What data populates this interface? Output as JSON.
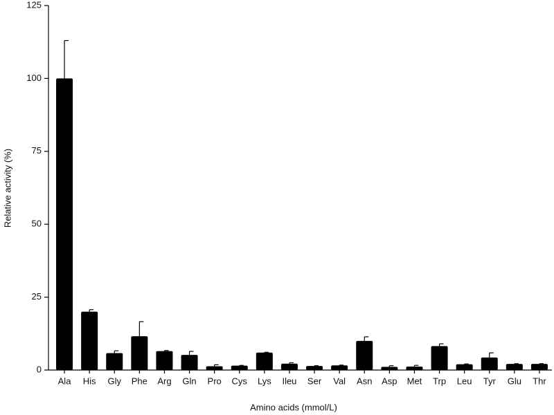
{
  "chart_data": {
    "type": "bar",
    "x_label": "Amino acids (mmol/L)",
    "y_label": "Relative activity (%)",
    "categories": [
      "Ala",
      "His",
      "Gly",
      "Phe",
      "Arg",
      "Gln",
      "Pro",
      "Cys",
      "Lys",
      "Ileu",
      "Ser",
      "Val",
      "Asn",
      "Asp",
      "Met",
      "Trp",
      "Leu",
      "Tyr",
      "Glu",
      "Thr"
    ],
    "values": [
      100,
      20,
      5.8,
      11.6,
      6.5,
      5.2,
      1.3,
      1.5,
      6,
      2.2,
      1.4,
      1.6,
      10,
      1.1,
      1.2,
      8.2,
      2,
      4.3,
      2.1,
      2.1
    ],
    "errors": [
      13,
      0.7,
      0.8,
      5,
      0.2,
      1.2,
      0.5,
      0.1,
      0.1,
      0.3,
      0.1,
      0.1,
      1.4,
      0.4,
      0.4,
      0.8,
      0.1,
      1.6,
      0.1,
      0.1
    ],
    "color": "#000000",
    "ylim": [
      0,
      125
    ],
    "yticks": [
      0,
      25,
      50,
      75,
      100,
      125
    ],
    "grid": false
  }
}
